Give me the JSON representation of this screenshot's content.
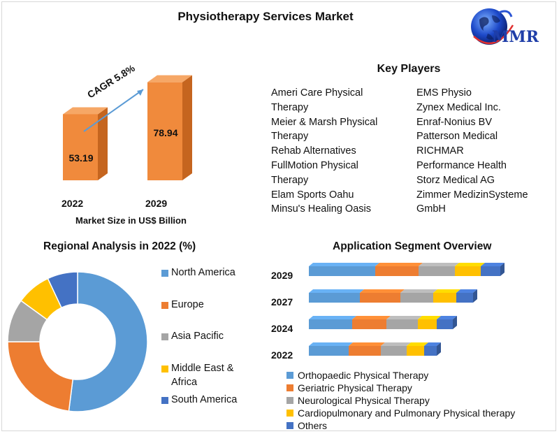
{
  "title": "Physiotherapy Services Market",
  "logo": {
    "text": "MMR",
    "icon": "globe-icon"
  },
  "colors": {
    "bar_front": "#f08a3c",
    "bar_side": "#c5651f",
    "bar_top": "#f6a766",
    "north_america": "#5b9bd5",
    "europe": "#ed7d31",
    "asia_pacific": "#a5a5a5",
    "middle_east_africa": "#ffc000",
    "south_america": "#4472c4"
  },
  "chart_data": [
    {
      "type": "bar",
      "title": "",
      "categories": [
        "2022",
        "2029"
      ],
      "values": [
        53.19,
        78.94
      ],
      "value_labels": [
        "53.19",
        "78.94"
      ],
      "xlabel": "Market Size in US$ Billion",
      "annotation": "CAGR 5.8%",
      "ylim": [
        0,
        90
      ]
    },
    {
      "type": "pie",
      "title": "Regional Analysis in 2022 (%)",
      "style": "donut",
      "categories": [
        "North America",
        "Europe",
        "Asia Pacific",
        "Middle East & Africa",
        "South America"
      ],
      "values": [
        52,
        23,
        10,
        8,
        7
      ],
      "legend": "right"
    },
    {
      "type": "bar",
      "orientation": "horizontal",
      "stacked": true,
      "title": "Application Segment Overview",
      "categories": [
        "2029",
        "2027",
        "2024",
        "2022"
      ],
      "series": [
        {
          "name": "Orthopaedic Physical Therapy",
          "values": [
            95,
            73,
            62,
            57
          ]
        },
        {
          "name": "Geriatric Physical Therapy",
          "values": [
            62,
            58,
            49,
            46
          ]
        },
        {
          "name": "Neurological Physical Therapy",
          "values": [
            52,
            47,
            45,
            37
          ]
        },
        {
          "name": "Cardiopulmonary and Pulmonary Physical therapy",
          "values": [
            37,
            33,
            27,
            25
          ]
        },
        {
          "name": "Others",
          "values": [
            28,
            24,
            23,
            18
          ]
        }
      ],
      "legend": "bottom"
    }
  ],
  "key_players": {
    "heading": "Key Players",
    "col1": [
      "Ameri Care Physical",
      "Therapy",
      "Meier & Marsh Physical",
      "Therapy",
      "Rehab Alternatives",
      "FullMotion Physical",
      "Therapy",
      "Elam Sports Oahu",
      "Minsu's Healing Oasis"
    ],
    "col2": [
      "EMS Physio",
      "Zynex Medical Inc.",
      "Enraf-Nonius BV",
      "Patterson Medical",
      "RICHMAR",
      "Performance Health",
      "Storz Medical AG",
      "Zimmer MedizinSysteme",
      "GmbH"
    ]
  },
  "regional_legend": {
    "north_america": "North America",
    "europe": "Europe",
    "asia_pacific": "Asia Pacific",
    "middle_east_line1": "Middle East &",
    "middle_east_line2": "Africa",
    "south_america": "South America"
  }
}
